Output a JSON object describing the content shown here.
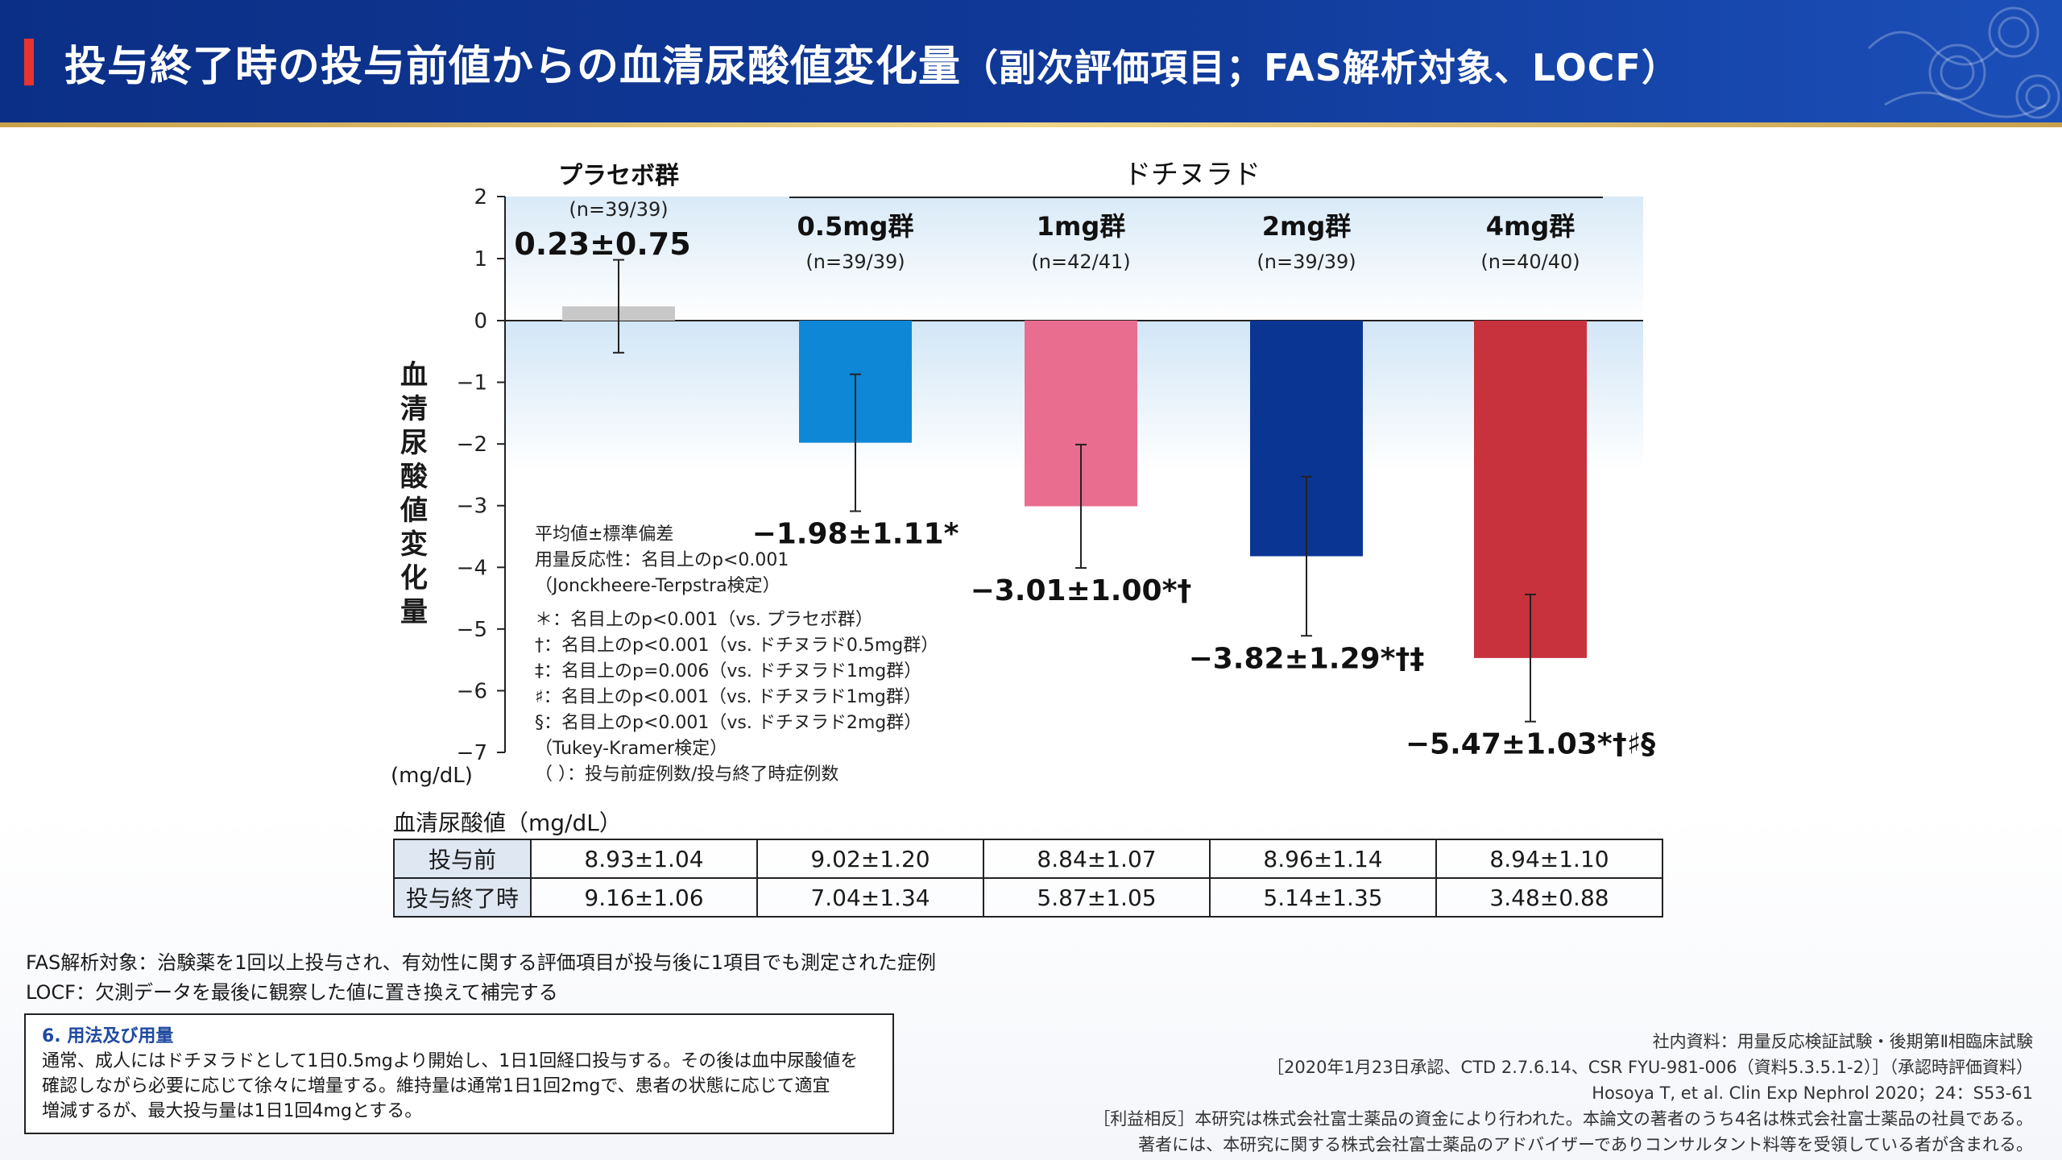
{
  "header": {
    "title_main": "投与終了時の投与前値からの血清尿酸値変化量",
    "title_sub": "（副次評価項目；FAS解析対象、LOCF）"
  },
  "chart_data": {
    "type": "bar",
    "ylabel": "血清尿酸値変化量",
    "unit": "(mg/dL)",
    "ylim": [
      -7,
      2
    ],
    "yticks": [
      "2",
      "1",
      "0",
      "−1",
      "−2",
      "−3",
      "−4",
      "−5",
      "−6",
      "−7"
    ],
    "yticks_values": [
      2,
      1,
      0,
      -1,
      -2,
      -3,
      -4,
      -5,
      -6,
      -7
    ],
    "group_label": "ドチヌラド",
    "series": [
      {
        "name": "プラセボ群",
        "n": "(n=39/39)",
        "value": 0.23,
        "sd": 0.75,
        "label": "0.23±0.75",
        "color": "#c8c8c8"
      },
      {
        "name": "0.5mg群",
        "n": "(n=39/39)",
        "value": -1.98,
        "sd": 1.11,
        "label": "−1.98±1.11*",
        "color": "#0f87d7"
      },
      {
        "name": "1mg群",
        "n": "(n=42/41)",
        "value": -3.01,
        "sd": 1.0,
        "label": "−3.01±1.00*†",
        "color": "#e96d8e"
      },
      {
        "name": "2mg群",
        "n": "(n=39/39)",
        "value": -3.82,
        "sd": 1.29,
        "label": "−3.82±1.29*†‡",
        "color": "#0b3593"
      },
      {
        "name": "4mg群",
        "n": "(n=40/40)",
        "value": -5.47,
        "sd": 1.03,
        "label": "−5.47±1.03*†♯§",
        "color": "#c8323d"
      }
    ]
  },
  "notes": [
    "平均値±標準偏差",
    "用量反応性：名目上のp<0.001",
    "（Jonckheere-Terpstra検定）",
    "＊：名目上のp<0.001（vs. プラセボ群）",
    "†：名目上のp<0.001（vs. ドチヌラド0.5mg群）",
    "‡：名目上のp=0.006（vs. ドチヌラド1mg群）",
    "♯：名目上のp<0.001（vs. ドチヌラド1mg群）",
    "§：名目上のp<0.001（vs. ドチヌラド2mg群）",
    "（Tukey-Kramer検定）",
    "（ ）：投与前症例数/投与終了時症例数"
  ],
  "table": {
    "caption": "血清尿酸値（mg/dL）",
    "rows": [
      {
        "label": "投与前",
        "cells": [
          "8.93±1.04",
          "9.02±1.20",
          "8.84±1.07",
          "8.96±1.14",
          "8.94±1.10"
        ]
      },
      {
        "label": "投与終了時",
        "cells": [
          "9.16±1.06",
          "7.04±1.34",
          "5.87±1.05",
          "5.14±1.35",
          "3.48±0.88"
        ]
      }
    ]
  },
  "definitions": [
    "FAS解析対象：治験薬を1回以上投与され、有効性に関する評価項目が投与後に1項目でも測定された症例",
    "LOCF：欠測データを最後に観察した値に置き換えて補完する"
  ],
  "usage": {
    "title": "6. 用法及び用量",
    "lines": [
      "通常、成人にはドチヌラドとして1日0.5mgより開始し、1日1回経口投与する。その後は血中尿酸値を",
      "確認しながら必要に応じて徐々に増量する。維持量は通常1日1回2mgで、患者の状態に応じて適宜",
      "増減するが、最大投与量は1日1回4mgとする。"
    ]
  },
  "references": [
    "社内資料：用量反応検証試験・後期第Ⅱ相臨床試験",
    "［2020年1月23日承認、CTD 2.7.6.14、CSR FYU-981-006（資料5.3.5.1-2）］（承認時評価資料）",
    "Hosoya T, et al. Clin Exp Nephrol 2020；24：S53-61",
    "［利益相反］本研究は株式会社富士薬品の資金により行われた。本論文の著者のうち4名は株式会社富士薬品の社員である。",
    "著者には、本研究に関する株式会社富士薬品のアドバイザーでありコンサルタント料等を受領している者が含まれる。"
  ]
}
